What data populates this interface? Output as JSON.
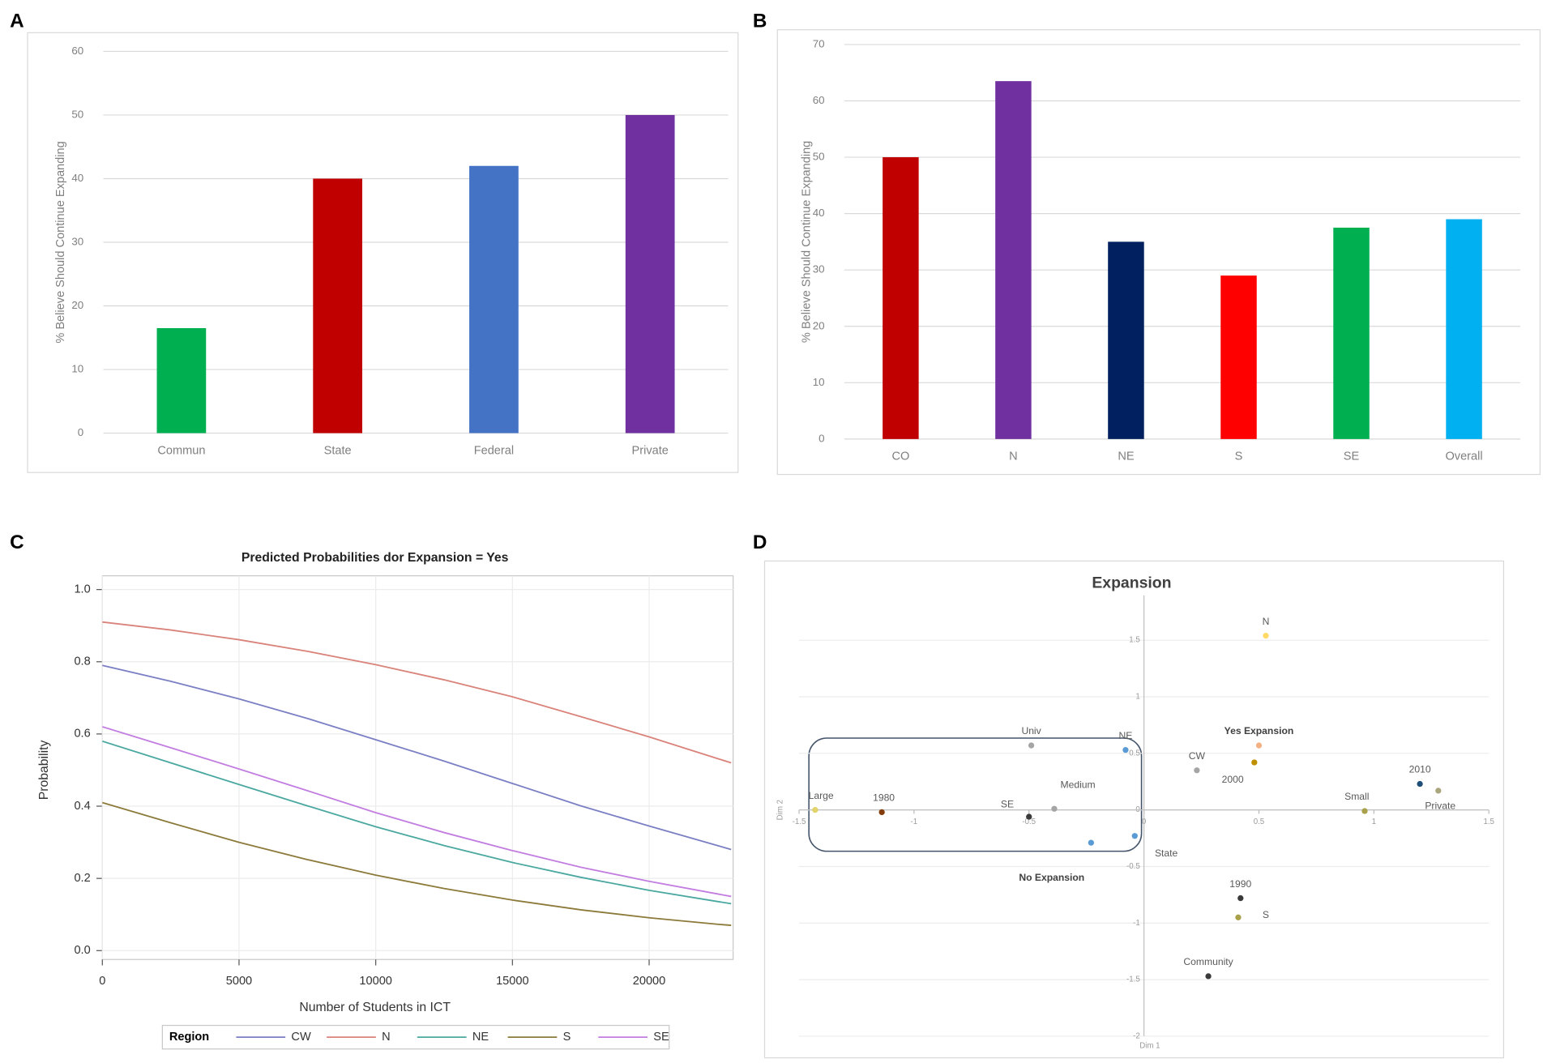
{
  "chart_data": [
    {
      "panel": "A",
      "type": "bar",
      "ylabel": "% Believe Should Continue Expanding",
      "categories": [
        "Commun",
        "State",
        "Federal",
        "Private"
      ],
      "values": [
        16.5,
        40,
        42,
        50
      ],
      "colors": [
        "#00b050",
        "#c00000",
        "#4472c4",
        "#7030a0"
      ],
      "ylim": [
        0,
        60
      ],
      "yticks": [
        0,
        10,
        20,
        30,
        40,
        50,
        60
      ],
      "grid": true
    },
    {
      "panel": "B",
      "type": "bar",
      "ylabel": "% Believe Should Continue Expanding",
      "categories": [
        "CO",
        "N",
        "NE",
        "S",
        "SE",
        "Overall"
      ],
      "values": [
        50,
        63.5,
        35,
        29,
        37.5,
        39
      ],
      "colors": [
        "#c00000",
        "#7030a0",
        "#002060",
        "#ff0000",
        "#00b050",
        "#00b0f0"
      ],
      "ylim": [
        0,
        70
      ],
      "yticks": [
        0,
        10,
        20,
        30,
        40,
        50,
        60,
        70
      ],
      "grid": true
    },
    {
      "panel": "C",
      "type": "line",
      "title": "Predicted Probabilities dor Expansion = Yes",
      "xlabel": "Number of Students in ICT",
      "ylabel": "Probability",
      "x": [
        0,
        2500,
        5000,
        7500,
        10000,
        12500,
        15000,
        17500,
        20000,
        22500,
        23000
      ],
      "series": [
        {
          "name": "CW",
          "color": "#7b7fc4",
          "values": [
            0.79,
            0.746,
            0.697,
            0.643,
            0.584,
            0.525,
            0.463,
            0.401,
            0.345,
            0.291,
            0.28
          ]
        },
        {
          "name": "N",
          "color": "#d9837a",
          "values": [
            0.91,
            0.888,
            0.861,
            0.829,
            0.792,
            0.75,
            0.703,
            0.648,
            0.592,
            0.532,
            0.52
          ]
        },
        {
          "name": "NE",
          "color": "#4aa8a0",
          "values": [
            0.58,
            0.52,
            0.46,
            0.401,
            0.343,
            0.291,
            0.244,
            0.203,
            0.167,
            0.136,
            0.13
          ]
        },
        {
          "name": "S",
          "color": "#8c7a3a",
          "values": [
            0.41,
            0.354,
            0.3,
            0.252,
            0.209,
            0.172,
            0.14,
            0.113,
            0.091,
            0.073,
            0.07
          ]
        },
        {
          "name": "SE",
          "color": "#c27de0",
          "values": [
            0.62,
            0.562,
            0.503,
            0.443,
            0.382,
            0.327,
            0.277,
            0.231,
            0.192,
            0.157,
            0.15
          ]
        }
      ],
      "legend_title": "Region",
      "legend": "bottom",
      "xlim": [
        0,
        23000
      ],
      "xticks": [
        0,
        5000,
        10000,
        15000,
        20000
      ],
      "ylim": [
        0,
        1
      ],
      "yticks": [
        {
          "value": 0,
          "label": "0.0"
        },
        0.2,
        0.4,
        0.6,
        0.8,
        {
          "value": 1,
          "label": "1.0"
        }
      ],
      "grid": true
    },
    {
      "panel": "D",
      "type": "scatter",
      "title": "Expansion",
      "xlabel": "Dim 1",
      "ylabel": "Dim 2",
      "points": [
        {
          "label": "N",
          "x": 0.53,
          "y": 1.54,
          "color": "#ffd966"
        },
        {
          "label": "Yes Expansion",
          "x": 0.5,
          "y": 0.57,
          "color": "#f4b183",
          "emphasis": true
        },
        {
          "label": "2000",
          "x": 0.48,
          "y": 0.42,
          "color": "#bf8f00"
        },
        {
          "label": "CW",
          "x": 0.23,
          "y": 0.35,
          "color": "#a5a5a5"
        },
        {
          "label": "2010",
          "x": 1.2,
          "y": 0.23,
          "color": "#1f4e79"
        },
        {
          "label": "Private",
          "x": 1.28,
          "y": 0.17,
          "color": "#a9a57c"
        },
        {
          "label": "Small",
          "x": 0.96,
          "y": -0.01,
          "color": "#a9a14a"
        },
        {
          "label": "Univ",
          "x": -0.49,
          "y": 0.57,
          "color": "#a5a5a5"
        },
        {
          "label": "NE",
          "x": -0.08,
          "y": 0.53,
          "color": "#5b9bd5"
        },
        {
          "label": "Medium",
          "x": -0.39,
          "y": 0.01,
          "color": "#a5a5a5"
        },
        {
          "label": "SE",
          "x": -0.5,
          "y": -0.06,
          "color": "#3a3a3a"
        },
        {
          "label": "Large",
          "x": -1.43,
          "y": 0,
          "color": "#e2d36b"
        },
        {
          "label": "1980",
          "x": -1.14,
          "y": -0.02,
          "color": "#843c0c"
        },
        {
          "label": "No Expansion",
          "x": -0.23,
          "y": -0.29,
          "color": "#5b9bd5",
          "emphasis": true
        },
        {
          "label": "State",
          "x": -0.04,
          "y": -0.23,
          "color": "#5b9bd5"
        },
        {
          "label": "1990",
          "x": 0.42,
          "y": -0.78,
          "color": "#3a3a3a"
        },
        {
          "label": "S",
          "x": 0.41,
          "y": -0.95,
          "color": "#a9a14a"
        },
        {
          "label": "Community",
          "x": 0.28,
          "y": -1.47,
          "color": "#3a3a3a"
        }
      ],
      "xlim": [
        -1.5,
        1.5
      ],
      "xticks": [
        -1.5,
        -1,
        -0.5,
        0,
        0.5,
        1,
        1.5
      ],
      "ylim": [
        -2,
        2
      ],
      "yticks": [
        -2,
        -1.5,
        -1,
        -0.5,
        0,
        0.5,
        1,
        1.5
      ],
      "grid": true
    }
  ]
}
